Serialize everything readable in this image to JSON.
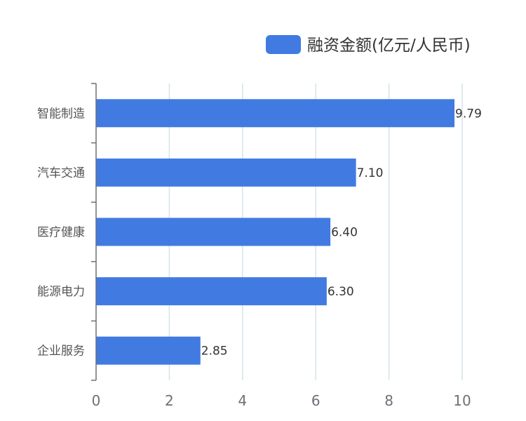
{
  "chart_data": {
    "type": "bar",
    "orientation": "horizontal",
    "categories": [
      "智能制造",
      "汽车交通",
      "医疗健康",
      "能源电力",
      "企业服务"
    ],
    "series": [
      {
        "name": "融资金额(亿元/人民币)",
        "values": [
          9.79,
          7.1,
          6.4,
          6.3,
          2.85
        ],
        "value_labels": [
          "9.79",
          "7.10",
          "6.40",
          "6.30",
          "2.85"
        ],
        "color": "#417be1"
      }
    ],
    "xlim": [
      0,
      10
    ],
    "x_ticks": [
      0,
      2,
      4,
      6,
      8,
      10
    ],
    "grid": true,
    "legend_position": "top-right",
    "gridline_color": "#d5e3ea",
    "axis_color": "#6e7079"
  }
}
